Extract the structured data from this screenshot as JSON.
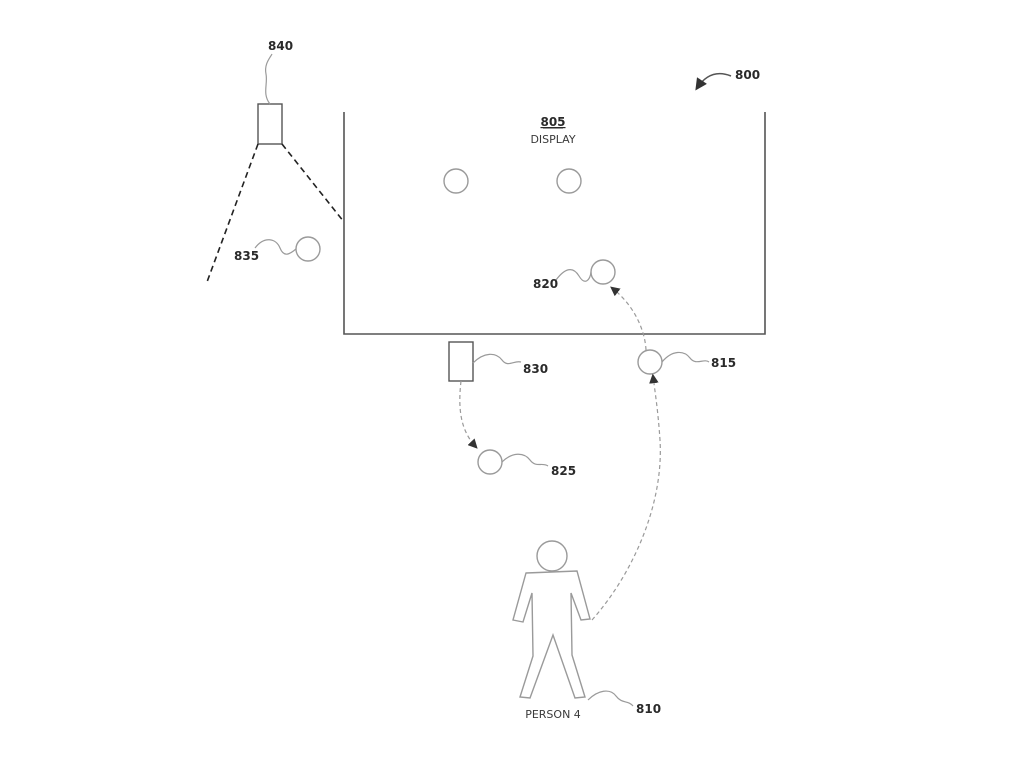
{
  "figure": {
    "figure_ref": "800",
    "display": {
      "ref": "805",
      "label": "DISPLAY"
    },
    "person": {
      "ref": "810",
      "label": "PERSON 4"
    },
    "refs": {
      "r815": "815",
      "r820": "820",
      "r825": "825",
      "r830": "830",
      "r835": "835",
      "r840": "840"
    }
  }
}
